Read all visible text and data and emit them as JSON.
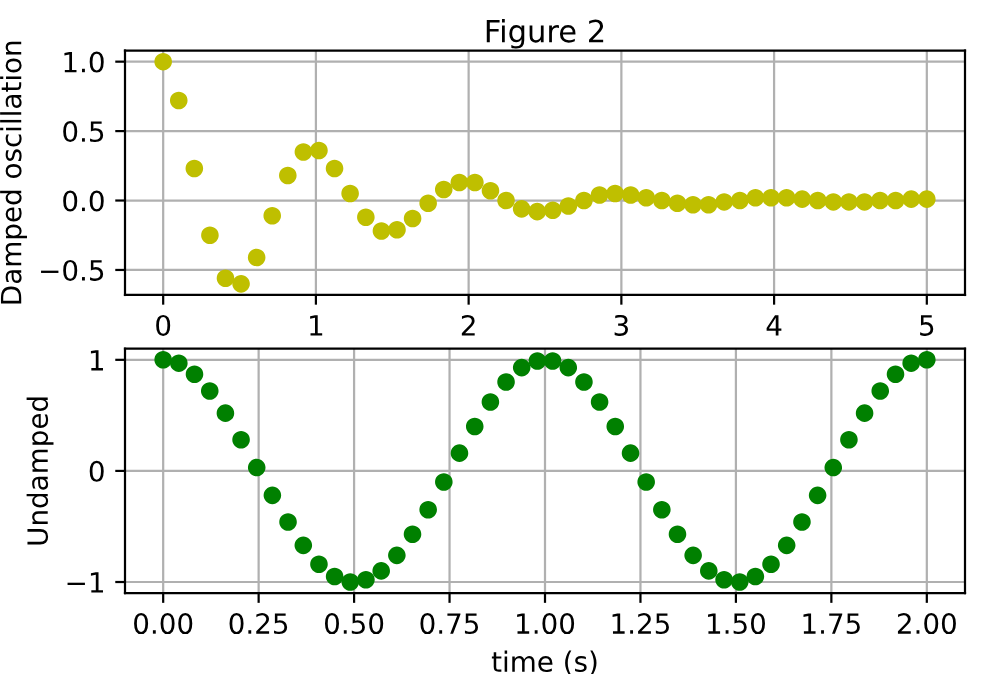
{
  "chart_data": [
    {
      "type": "scatter",
      "title": "Figure 2",
      "ylabel": "Damped oscillation",
      "marker": "circle",
      "grid": true,
      "x": [
        0,
        0.102,
        0.204,
        0.306,
        0.408,
        0.51,
        0.612,
        0.714,
        0.816,
        0.918,
        1.02,
        1.122,
        1.224,
        1.327,
        1.429,
        1.531,
        1.633,
        1.735,
        1.837,
        1.939,
        2.041,
        2.143,
        2.245,
        2.347,
        2.449,
        2.551,
        2.653,
        2.755,
        2.857,
        2.959,
        3.061,
        3.163,
        3.265,
        3.367,
        3.469,
        3.571,
        3.673,
        3.776,
        3.878,
        3.98,
        4.082,
        4.184,
        4.286,
        4.388,
        4.49,
        4.592,
        4.694,
        4.796,
        4.898,
        5.0
      ],
      "series": [
        {
          "color": "#bfbf00",
          "values": [
            1.0,
            0.72,
            0.23,
            -0.25,
            -0.56,
            -0.6,
            -0.41,
            -0.11,
            0.18,
            0.35,
            0.36,
            0.23,
            0.05,
            -0.12,
            -0.22,
            -0.21,
            -0.13,
            -0.02,
            0.08,
            0.13,
            0.13,
            0.07,
            0.0,
            -0.06,
            -0.08,
            -0.07,
            -0.04,
            0.0,
            0.04,
            0.05,
            0.04,
            0.02,
            0.0,
            -0.02,
            -0.03,
            -0.03,
            -0.01,
            0.0,
            0.02,
            0.02,
            0.02,
            0.01,
            0.0,
            -0.01,
            -0.01,
            -0.01,
            0.0,
            0.0,
            0.01,
            0.01
          ]
        }
      ],
      "xlim": [
        -0.25,
        5.25
      ],
      "ylim": [
        -0.68,
        1.08
      ],
      "xticks": [
        0,
        1,
        2,
        3,
        4,
        5
      ],
      "yticks": [
        {
          "value": -0.5,
          "label": "−0.5"
        },
        {
          "value": 0,
          "label": "0.0"
        },
        {
          "value": 0.5,
          "label": "0.5"
        },
        {
          "value": 1.0,
          "label": "1.0"
        }
      ]
    },
    {
      "type": "scatter",
      "xlabel": "time (s)",
      "ylabel": "Undamped",
      "marker": "circle",
      "grid": true,
      "x": [
        0,
        0.041,
        0.082,
        0.122,
        0.163,
        0.204,
        0.245,
        0.286,
        0.327,
        0.367,
        0.408,
        0.449,
        0.49,
        0.531,
        0.571,
        0.612,
        0.653,
        0.694,
        0.735,
        0.776,
        0.816,
        0.857,
        0.898,
        0.939,
        0.98,
        1.02,
        1.061,
        1.102,
        1.143,
        1.184,
        1.224,
        1.265,
        1.306,
        1.347,
        1.388,
        1.429,
        1.469,
        1.51,
        1.551,
        1.592,
        1.633,
        1.673,
        1.714,
        1.755,
        1.796,
        1.837,
        1.878,
        1.918,
        1.959,
        2.0
      ],
      "series": [
        {
          "color": "#008000",
          "values": [
            1.0,
            0.97,
            0.87,
            0.72,
            0.52,
            0.28,
            0.03,
            -0.22,
            -0.46,
            -0.67,
            -0.84,
            -0.95,
            -1.0,
            -0.98,
            -0.9,
            -0.76,
            -0.57,
            -0.35,
            -0.1,
            0.16,
            0.4,
            0.62,
            0.8,
            0.93,
            0.99,
            0.99,
            0.93,
            0.8,
            0.62,
            0.4,
            0.16,
            -0.1,
            -0.35,
            -0.57,
            -0.76,
            -0.9,
            -0.98,
            -1.0,
            -0.95,
            -0.84,
            -0.67,
            -0.46,
            -0.22,
            0.03,
            0.28,
            0.52,
            0.72,
            0.87,
            0.97,
            1.0
          ]
        }
      ],
      "xlim": [
        -0.1,
        2.1
      ],
      "ylim": [
        -1.1,
        1.1
      ],
      "xticks": [
        {
          "value": 0,
          "label": "0.00"
        },
        {
          "value": 0.25,
          "label": "0.25"
        },
        {
          "value": 0.5,
          "label": "0.50"
        },
        {
          "value": 0.75,
          "label": "0.75"
        },
        {
          "value": 1.0,
          "label": "1.00"
        },
        {
          "value": 1.25,
          "label": "1.25"
        },
        {
          "value": 1.5,
          "label": "1.50"
        },
        {
          "value": 1.75,
          "label": "1.75"
        },
        {
          "value": 2.0,
          "label": "2.00"
        }
      ],
      "yticks": [
        {
          "value": -1,
          "label": "−1"
        },
        {
          "value": 0,
          "label": "0"
        },
        {
          "value": 1,
          "label": "1"
        }
      ]
    }
  ]
}
